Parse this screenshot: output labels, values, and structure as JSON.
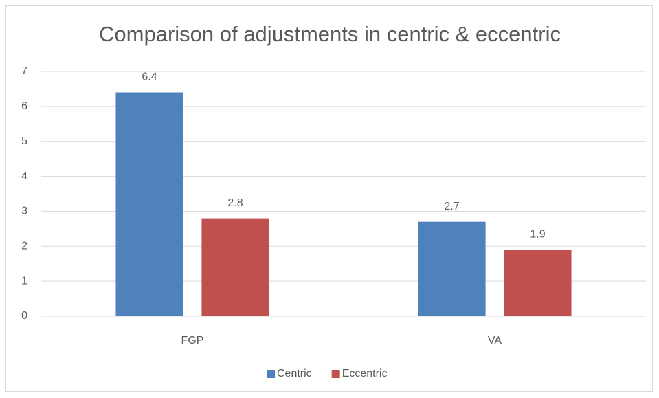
{
  "chart_data": {
    "type": "bar",
    "title": "Comparison of adjustments in centric & eccentric",
    "categories": [
      "FGP",
      "VA"
    ],
    "series": [
      {
        "name": "Centric",
        "color": "#4f81bd",
        "values": [
          6.4,
          2.7
        ]
      },
      {
        "name": "Eccentric",
        "color": "#c0504d",
        "values": [
          2.8,
          1.9
        ]
      }
    ],
    "ylim": [
      0,
      7
    ],
    "yticks": [
      0,
      1,
      2,
      3,
      4,
      5,
      6,
      7
    ],
    "grid": true,
    "legend": "bottom"
  }
}
